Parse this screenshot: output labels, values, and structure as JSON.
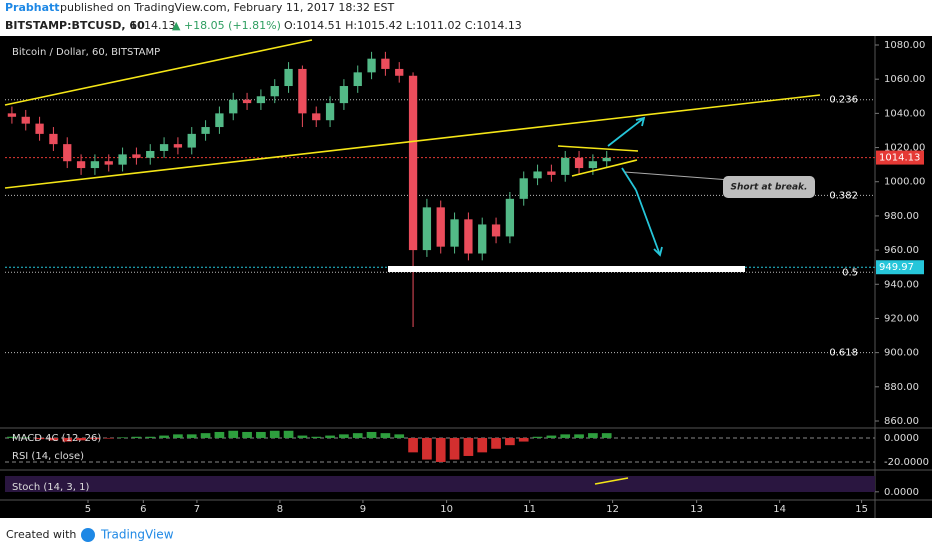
{
  "header": {
    "author": "Prabhatt",
    "published": "published on TradingView.com, February 11, 2017 18:32 EST",
    "symbol": "BITSTAMP:BTCUSD, 60",
    "last": "1014.13",
    "change": "▲ +18.05 (+1.81%)",
    "ohlc": "O:1014.51 H:1015.42 L:1011.02 C:1014.13"
  },
  "chart_data": {
    "type": "candlestick",
    "title": "Bitcoin / Dollar, 60, BITSTAMP",
    "x": [
      2,
      6,
      10,
      14,
      18,
      22,
      26,
      30,
      34,
      38,
      42,
      46,
      50,
      54,
      58,
      62,
      66,
      70,
      74,
      78,
      82,
      86,
      90,
      94,
      98,
      102,
      106,
      110,
      114,
      118,
      122,
      126,
      130,
      134,
      138,
      142,
      146,
      150,
      154,
      158,
      162,
      166,
      170,
      174
    ],
    "open": [
      1040,
      1038,
      1034,
      1028,
      1022,
      1012,
      1008,
      1012,
      1010,
      1016,
      1014,
      1018,
      1022,
      1020,
      1028,
      1032,
      1040,
      1048,
      1046,
      1050,
      1056,
      1066,
      1040,
      1036,
      1046,
      1056,
      1064,
      1072,
      1066,
      1062,
      960,
      985,
      962,
      978,
      958,
      975,
      968,
      990,
      1002,
      1006,
      1004,
      1014,
      1008,
      1012
    ],
    "high": [
      1044,
      1042,
      1038,
      1032,
      1026,
      1016,
      1016,
      1016,
      1020,
      1020,
      1022,
      1026,
      1026,
      1032,
      1036,
      1044,
      1052,
      1052,
      1054,
      1060,
      1070,
      1068,
      1044,
      1050,
      1060,
      1068,
      1076,
      1076,
      1070,
      1064,
      990,
      989,
      982,
      982,
      979,
      979,
      994,
      1006,
      1010,
      1010,
      1018,
      1018,
      1016,
      1018
    ],
    "low": [
      1034,
      1030,
      1024,
      1018,
      1008,
      1004,
      1004,
      1006,
      1006,
      1010,
      1010,
      1014,
      1016,
      1016,
      1024,
      1028,
      1036,
      1042,
      1042,
      1046,
      1052,
      1032,
      1032,
      1032,
      1042,
      1052,
      1060,
      1062,
      1058,
      915,
      956,
      958,
      958,
      954,
      954,
      964,
      964,
      986,
      998,
      1000,
      1000,
      1004,
      1004,
      1008
    ],
    "close": [
      1038,
      1034,
      1028,
      1022,
      1012,
      1008,
      1012,
      1010,
      1016,
      1014,
      1018,
      1022,
      1020,
      1028,
      1032,
      1040,
      1048,
      1046,
      1050,
      1056,
      1066,
      1040,
      1036,
      1046,
      1056,
      1064,
      1072,
      1066,
      1062,
      960,
      985,
      962,
      978,
      958,
      975,
      968,
      990,
      1002,
      1006,
      1004,
      1014,
      1008,
      1012,
      1014
    ],
    "up_color": "#53b987",
    "down_color": "#eb4d5c",
    "xlim": [
      0,
      251
    ],
    "xticks": [
      {
        "value": 24,
        "label": "5"
      },
      {
        "value": 40,
        "label": "6"
      },
      {
        "value": 55.5,
        "label": "7"
      },
      {
        "value": 79.5,
        "label": "8"
      },
      {
        "value": 103.5,
        "label": "9"
      },
      {
        "value": 127.7,
        "label": "10"
      },
      {
        "value": 151.7,
        "label": "11"
      },
      {
        "value": 175.7,
        "label": "12"
      },
      {
        "value": 200,
        "label": "13"
      },
      {
        "value": 224,
        "label": "14"
      },
      {
        "value": 247.7,
        "label": "15"
      }
    ],
    "ylim": [
      855.9,
      1084.1
    ],
    "yticks": [
      {
        "value": 860,
        "label": "860.00"
      },
      {
        "value": 880,
        "label": "880.00"
      },
      {
        "value": 900,
        "label": "900.00"
      },
      {
        "value": 920,
        "label": "920.00"
      },
      {
        "value": 940,
        "label": "940.00"
      },
      {
        "value": 960,
        "label": "960.00"
      },
      {
        "value": 980,
        "label": "980.00"
      },
      {
        "value": 1000,
        "label": "1000.00"
      },
      {
        "value": 1020,
        "label": "1020.00"
      },
      {
        "value": 1040,
        "label": "1040.00"
      },
      {
        "value": 1060,
        "label": "1060.00"
      },
      {
        "value": 1080,
        "label": "1080.00"
      }
    ],
    "fib_levels": [
      {
        "level": 0.236,
        "price": 1048
      },
      {
        "level": 0.382,
        "price": 992
      },
      {
        "level": 0.5,
        "price": 947
      },
      {
        "level": 0.618,
        "price": 900
      }
    ],
    "price_tags": [
      {
        "value": 1014.13,
        "color": "#e53935"
      },
      {
        "value": 949.97,
        "color": "#26c6da"
      }
    ],
    "annotation": "Short at break.",
    "macd": {
      "name": "MACD 4C (12, 26)",
      "values": [
        1,
        0.5,
        -1,
        -2,
        -3,
        -2,
        -1,
        -0.5,
        0.5,
        1,
        1,
        2,
        3,
        3,
        4,
        5,
        6,
        5,
        5,
        6,
        6,
        2,
        1,
        2,
        3,
        4,
        5,
        4,
        3,
        -12,
        -18,
        -20,
        -18,
        -15,
        -12,
        -9,
        -6,
        -3,
        1,
        2,
        3,
        3,
        4,
        4
      ],
      "ylim": [
        -26.7,
        8.3
      ],
      "yticks": [
        {
          "value": 0,
          "label": "0.0000"
        },
        {
          "value": -20,
          "label": "-20.0000"
        }
      ]
    },
    "rsi": {
      "name": "RSI (14, close)"
    },
    "stoch": {
      "name": "Stoch (14, 3, 1)",
      "ylim": [
        -37.5,
        100
      ],
      "yticks": [
        {
          "value": 0,
          "label": "0.0000"
        }
      ]
    }
  },
  "footer": {
    "created": "Created with",
    "brand": "TradingView"
  }
}
